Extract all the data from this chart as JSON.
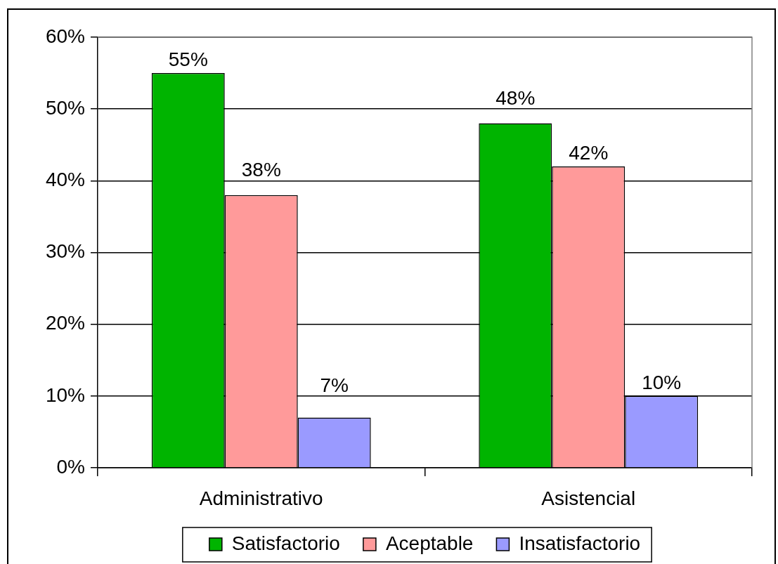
{
  "chart_data": {
    "type": "bar",
    "categories": [
      "Administrativo",
      "Asistencial"
    ],
    "series": [
      {
        "name": "Satisfactorio",
        "color": "#00b400",
        "values": [
          55,
          48
        ],
        "value_labels": [
          "55%",
          "48%"
        ]
      },
      {
        "name": "Aceptable",
        "color": "#ff9a9a",
        "values": [
          38,
          42
        ],
        "value_labels": [
          "38%",
          "42%"
        ]
      },
      {
        "name": "Insatisfactorio",
        "color": "#9a9aff",
        "values": [
          7,
          10
        ],
        "value_labels": [
          "7%",
          "10%"
        ]
      }
    ],
    "ylim": [
      0,
      60
    ],
    "yticks": [
      {
        "value": 0,
        "label": "0%"
      },
      {
        "value": 10,
        "label": "10%"
      },
      {
        "value": 20,
        "label": "20%"
      },
      {
        "value": 30,
        "label": "30%"
      },
      {
        "value": 40,
        "label": "40%"
      },
      {
        "value": 50,
        "label": "50%"
      },
      {
        "value": 60,
        "label": "60%"
      }
    ],
    "grid": "y",
    "legend": "bottom"
  }
}
